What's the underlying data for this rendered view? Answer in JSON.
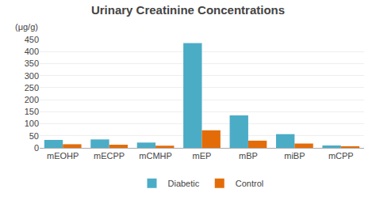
{
  "chart_data": {
    "type": "bar",
    "title": "Urinary Creatinine Concentrations",
    "ylabel": "(μg/g)",
    "categories": [
      "mEOHP",
      "mECPP",
      "mCMHP",
      "mEP",
      "mBP",
      "miBP",
      "mCPP"
    ],
    "series": [
      {
        "name": "Diabetic",
        "color": "#4bacc6",
        "values": [
          33,
          35,
          22,
          435,
          135,
          57,
          10
        ]
      },
      {
        "name": "Control",
        "color": "#e36c09",
        "values": [
          15,
          13,
          9,
          73,
          30,
          18,
          4
        ]
      }
    ],
    "ylim": [
      0,
      450
    ],
    "yticks": [
      0,
      50,
      100,
      150,
      200,
      250,
      300,
      350,
      400,
      450
    ],
    "grid": true,
    "legend": "bottom"
  }
}
